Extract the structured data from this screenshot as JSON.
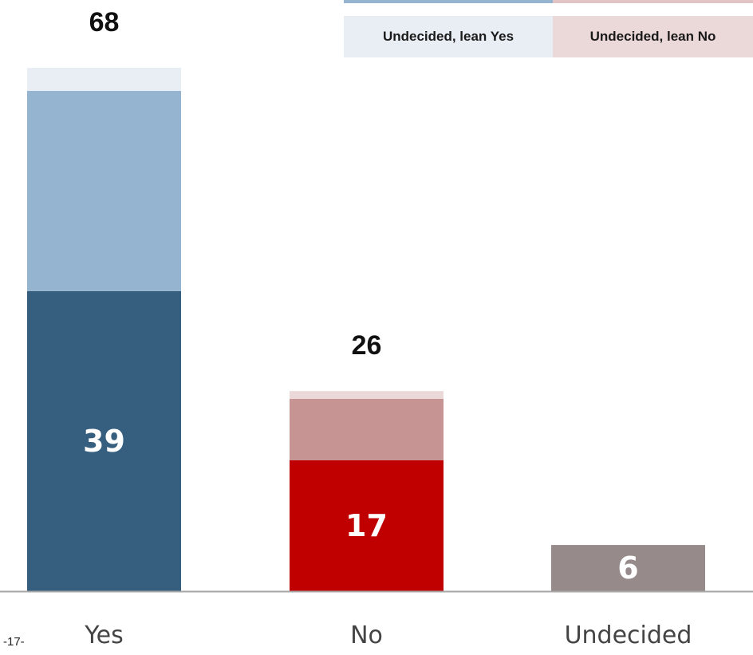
{
  "legend": {
    "items": [
      {
        "label": "Undecided, lean Yes",
        "color": "#e9eef5",
        "bar_color": "#94b4d0"
      },
      {
        "label": "Undecided, lean No",
        "color": "#ebd8d8",
        "bar_color": "#e3c4c4"
      }
    ]
  },
  "page_number": "-17-",
  "chart_data": {
    "type": "bar",
    "stacked": true,
    "categories": [
      "Yes",
      "No",
      "Undecided"
    ],
    "totals": [
      68,
      26,
      6
    ],
    "series": [
      {
        "color_yes": "#365e7e",
        "color_no": "#c00000",
        "color_undecided": "#968b8a",
        "values": [
          39,
          17,
          6
        ],
        "labels": [
          "39",
          "17",
          "6"
        ]
      },
      {
        "color_yes": "#94b4d0",
        "color_no": "#c69493",
        "values": [
          26,
          8,
          0
        ]
      },
      {
        "name": "Undecided, lean Yes / No",
        "color_yes": "#e9eef5",
        "color_no": "#ebd8d8",
        "values": [
          3,
          1,
          0
        ]
      }
    ],
    "total_labels": [
      "68",
      "26",
      ""
    ],
    "ylim": [
      0,
      68
    ],
    "grid": false,
    "legend_position": "top-right"
  }
}
